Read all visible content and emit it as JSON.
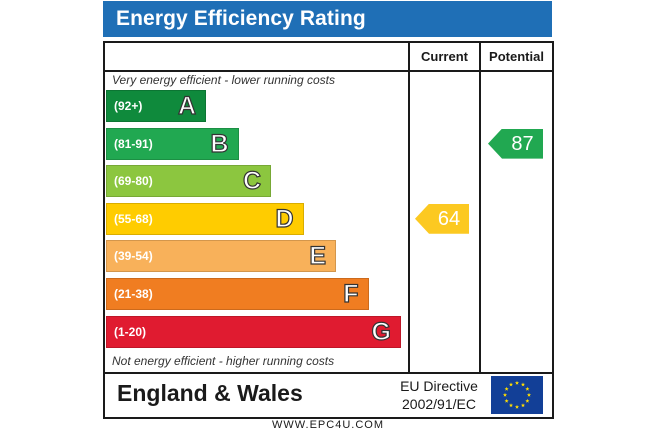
{
  "title": "Energy Efficiency Rating",
  "columns": {
    "current": "Current",
    "potential": "Potential"
  },
  "notes": {
    "top": "Very energy efficient - lower running costs",
    "bottom": "Not energy efficient - higher running costs"
  },
  "footer": {
    "region": "England & Wales",
    "directive_line1": "EU Directive",
    "directive_line2": "2002/91/EC"
  },
  "website": "WWW.EPC4U.COM",
  "colors": {
    "header": "#1f6fb6",
    "flag": "#123f97",
    "star": "#ffdd00"
  },
  "chart_data": {
    "type": "bar",
    "title": "Energy Efficiency Rating",
    "bands": [
      {
        "letter": "A",
        "range": "(92+)",
        "color": "#0f8a3c"
      },
      {
        "letter": "B",
        "range": "(81-91)",
        "color": "#21a851"
      },
      {
        "letter": "C",
        "range": "(69-80)",
        "color": "#8cc63f"
      },
      {
        "letter": "D",
        "range": "(55-68)",
        "color": "#ffcc00"
      },
      {
        "letter": "E",
        "range": "(39-54)",
        "color": "#f8b15a"
      },
      {
        "letter": "F",
        "range": "(21-38)",
        "color": "#f07d21"
      },
      {
        "letter": "G",
        "range": "(1-20)",
        "color": "#e01b30"
      }
    ],
    "current": {
      "value": 64,
      "label": "64",
      "band": "D",
      "color": "#fcc921"
    },
    "potential": {
      "value": 87,
      "label": "87",
      "band": "B",
      "color": "#21a851"
    }
  }
}
